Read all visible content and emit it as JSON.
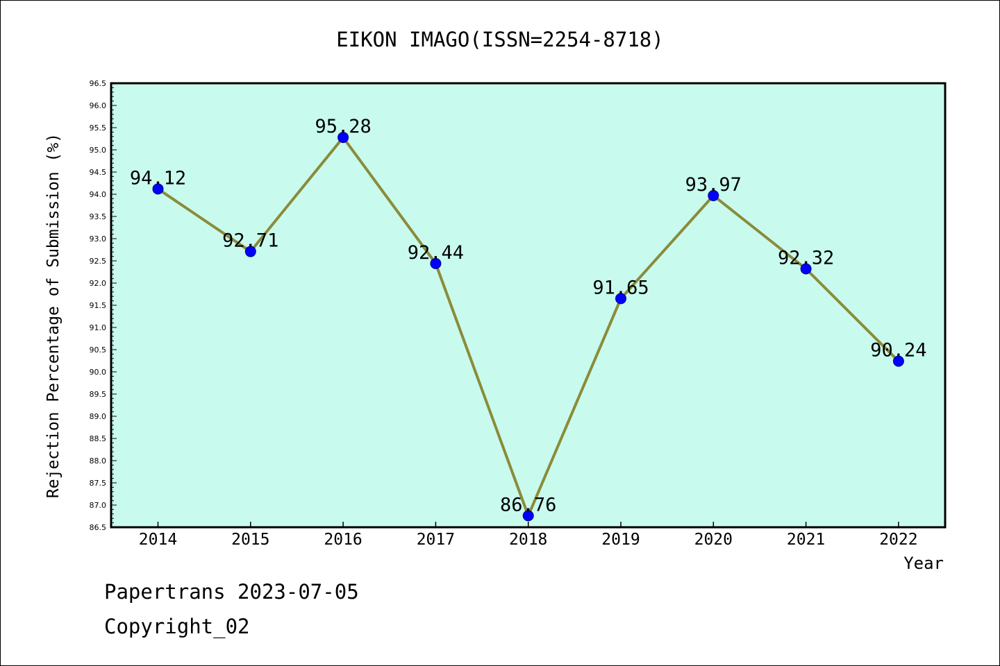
{
  "chart_data": {
    "type": "line",
    "title": "EIKON IMAGO(ISSN=2254-8718)",
    "xlabel": "Year",
    "ylabel": "Rejection Percentage of Submission (%)",
    "categories": [
      "2014",
      "2015",
      "2016",
      "2017",
      "2018",
      "2019",
      "2020",
      "2021",
      "2022"
    ],
    "series": [
      {
        "values": [
          94.12,
          92.71,
          95.28,
          92.44,
          86.76,
          91.65,
          93.97,
          92.32,
          90.24
        ],
        "labels": [
          "94.12",
          "92.71",
          "95.28",
          "92.44",
          "86.76",
          "91.65",
          "93.97",
          "92.32",
          "90.24"
        ]
      }
    ],
    "ylim": [
      86.5,
      96.5
    ],
    "y_ticks": [
      "86.5",
      "87.0",
      "87.5",
      "88.0",
      "88.5",
      "89.0",
      "89.5",
      "90.0",
      "90.5",
      "91.0",
      "91.5",
      "92.0",
      "92.5",
      "93.0",
      "93.5",
      "94.0",
      "94.5",
      "95.0",
      "95.5",
      "96.0",
      "96.5"
    ],
    "grid": false,
    "colors": {
      "plot_background": "#c8fbee",
      "line": "#8b8b3a",
      "marker": "#0000ff"
    }
  },
  "footer": {
    "line1": "Papertrans 2023-07-05",
    "line2": "Copyright_02"
  }
}
